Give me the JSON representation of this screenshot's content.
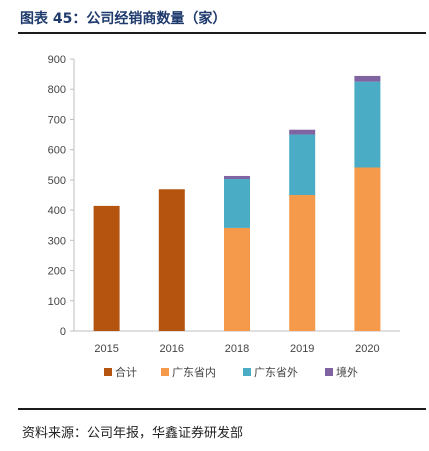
{
  "figure": {
    "title": "图表 45：公司经销商数量（家）",
    "source": "资料来源：公司年报，华鑫证券研发部"
  },
  "chart_data": {
    "type": "bar",
    "stacked": true,
    "categories": [
      "2015",
      "2016",
      "2018",
      "2019",
      "2020"
    ],
    "series": [
      {
        "name": "合计",
        "color": "#b5540f",
        "values": [
          414,
          469,
          null,
          null,
          null
        ]
      },
      {
        "name": "广东省内",
        "color": "#f59a4a",
        "values": [
          null,
          null,
          341,
          450,
          541
        ]
      },
      {
        "name": "广东省外",
        "color": "#4bacc6",
        "values": [
          null,
          null,
          162,
          200,
          284
        ]
      },
      {
        "name": "境外",
        "color": "#8064a2",
        "values": [
          null,
          null,
          10,
          16,
          19
        ]
      }
    ],
    "ylim": [
      0,
      900
    ],
    "yticks": [
      0,
      100,
      200,
      300,
      400,
      500,
      600,
      700,
      800,
      900
    ],
    "grid": false,
    "legend": "bottom"
  }
}
